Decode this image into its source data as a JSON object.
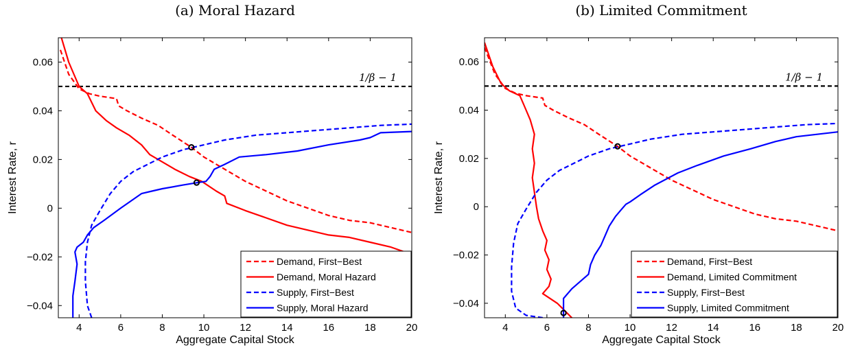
{
  "chart_data": [
    {
      "type": "line",
      "title": "(a) Moral Hazard",
      "xlabel": "Aggregate Capital Stock",
      "ylabel": "Interest Rate, r",
      "xlim": [
        3,
        20
      ],
      "ylim": [
        -0.045,
        0.07
      ],
      "xticks": [
        "4",
        "6",
        "8",
        "10",
        "12",
        "14",
        "16",
        "18",
        "20"
      ],
      "yticks": [
        "−0.04",
        "−0.02",
        "0",
        "0.02",
        "0.04",
        "0.06"
      ],
      "xtick_values": [
        4,
        6,
        8,
        10,
        12,
        14,
        16,
        18,
        20
      ],
      "ytick_values": [
        -0.04,
        -0.02,
        0,
        0.02,
        0.04,
        0.06
      ],
      "annotation": "1/β − 1",
      "hline": 0.05,
      "legend_position": "bottom-right",
      "series": [
        {
          "name": "Demand, First−Best",
          "color": "#ff0000",
          "style": "dashed",
          "x": [
            3.1,
            3.5,
            4.0,
            4.5,
            5.0,
            5.8,
            5.9,
            6.3,
            7.0,
            7.8,
            8.5,
            9.4,
            10.0,
            11.0,
            12.0,
            13.0,
            14.0,
            15.0,
            16.0,
            17.0,
            18.0,
            19.0,
            20.0
          ],
          "y": [
            0.065,
            0.055,
            0.049,
            0.047,
            0.046,
            0.045,
            0.042,
            0.04,
            0.037,
            0.034,
            0.03,
            0.025,
            0.021,
            0.016,
            0.011,
            0.007,
            0.003,
            0.0,
            -0.003,
            -0.005,
            -0.006,
            -0.008,
            -0.01
          ]
        },
        {
          "name": "Demand, Moral Hazard",
          "color": "#ff0000",
          "style": "solid",
          "x": [
            3.15,
            3.5,
            4.0,
            4.4,
            4.8,
            5.3,
            5.8,
            6.4,
            7.0,
            7.4,
            8.0,
            8.6,
            9.3,
            9.9,
            10.6,
            11.0,
            11.1,
            12.0,
            13.0,
            14.0,
            15.0,
            16.0,
            17.0,
            18.0,
            19.0,
            20.0
          ],
          "y": [
            0.07,
            0.06,
            0.05,
            0.047,
            0.04,
            0.036,
            0.033,
            0.03,
            0.026,
            0.022,
            0.019,
            0.016,
            0.013,
            0.011,
            0.007,
            0.005,
            0.002,
            -0.001,
            -0.004,
            -0.007,
            -0.009,
            -0.011,
            -0.012,
            -0.014,
            -0.016,
            -0.019
          ]
        },
        {
          "name": "Supply, First−Best",
          "color": "#0000ff",
          "style": "dashed",
          "x": [
            4.6,
            4.4,
            4.3,
            4.3,
            4.4,
            4.6,
            5.0,
            5.5,
            6.0,
            6.6,
            7.3,
            8.0,
            9.0,
            10.0,
            11.0,
            12.5,
            14.0,
            15.5,
            17.0,
            18.5,
            20.0
          ],
          "y": [
            -0.045,
            -0.04,
            -0.03,
            -0.022,
            -0.014,
            -0.007,
            -0.001,
            0.006,
            0.011,
            0.015,
            0.018,
            0.021,
            0.024,
            0.026,
            0.028,
            0.03,
            0.031,
            0.032,
            0.033,
            0.034,
            0.0345
          ]
        },
        {
          "name": "Supply, Moral Hazard",
          "color": "#0000ff",
          "style": "solid",
          "x": [
            3.7,
            3.7,
            3.8,
            3.9,
            3.8,
            3.9,
            4.2,
            4.4,
            4.7,
            5.2,
            6.0,
            7.0,
            7.5,
            8.0,
            9.0,
            9.7,
            10.1,
            10.3,
            10.5,
            11.0,
            11.7,
            13.0,
            14.5,
            16.0,
            17.5,
            18.0,
            18.5,
            20.0
          ],
          "y": [
            -0.045,
            -0.036,
            -0.03,
            -0.023,
            -0.018,
            -0.016,
            -0.014,
            -0.011,
            -0.008,
            -0.005,
            0.0,
            0.006,
            0.007,
            0.008,
            0.0095,
            0.0105,
            0.011,
            0.013,
            0.016,
            0.018,
            0.021,
            0.022,
            0.0235,
            0.026,
            0.028,
            0.029,
            0.031,
            0.0315
          ]
        }
      ],
      "markers": [
        {
          "x": 9.4,
          "y": 0.025
        },
        {
          "x": 9.65,
          "y": 0.0105
        }
      ]
    },
    {
      "type": "line",
      "title": "(b) Limited Commitment",
      "xlabel": "Aggregate Capital Stock",
      "ylabel": "Interest Rate, r",
      "xlim": [
        3,
        20
      ],
      "ylim": [
        -0.046,
        0.07
      ],
      "xticks": [
        "4",
        "6",
        "8",
        "10",
        "12",
        "14",
        "16",
        "18",
        "20"
      ],
      "yticks": [
        "−0.04",
        "−0.02",
        "0",
        "0.02",
        "0.04",
        "0.06"
      ],
      "xtick_values": [
        4,
        6,
        8,
        10,
        12,
        14,
        16,
        18,
        20
      ],
      "ytick_values": [
        -0.04,
        -0.02,
        0,
        0.02,
        0.04,
        0.06
      ],
      "annotation": "1/β − 1",
      "hline": 0.05,
      "legend_position": "bottom-right",
      "series": [
        {
          "name": "Demand, First−Best",
          "color": "#ff0000",
          "style": "dashed",
          "x": [
            3.0,
            3.5,
            4.0,
            4.5,
            5.0,
            5.8,
            5.9,
            6.3,
            7.0,
            7.8,
            8.5,
            9.4,
            10.0,
            11.0,
            12.0,
            13.0,
            14.0,
            15.0,
            16.0,
            17.0,
            18.0,
            19.0,
            20.0
          ],
          "y": [
            0.066,
            0.055,
            0.049,
            0.047,
            0.046,
            0.045,
            0.042,
            0.04,
            0.037,
            0.034,
            0.03,
            0.025,
            0.021,
            0.016,
            0.011,
            0.007,
            0.003,
            0.0,
            -0.003,
            -0.005,
            -0.006,
            -0.008,
            -0.01
          ]
        },
        {
          "name": "Demand, Limited Commitment",
          "color": "#ff0000",
          "style": "solid",
          "x": [
            3.0,
            3.4,
            3.8,
            4.2,
            4.7,
            4.9,
            5.2,
            5.4,
            5.3,
            5.4,
            5.3,
            5.4,
            5.5,
            5.6,
            5.8,
            6.0,
            5.9,
            6.1,
            6.0,
            6.2,
            6.1,
            5.8,
            6.5,
            7.2
          ],
          "y": [
            0.068,
            0.058,
            0.051,
            0.048,
            0.046,
            0.042,
            0.036,
            0.03,
            0.024,
            0.018,
            0.012,
            0.006,
            0.0,
            -0.005,
            -0.01,
            -0.014,
            -0.018,
            -0.022,
            -0.026,
            -0.03,
            -0.033,
            -0.036,
            -0.04,
            -0.046
          ]
        },
        {
          "name": "Supply, First−Best",
          "color": "#0000ff",
          "style": "dashed",
          "x": [
            5.8,
            5.0,
            4.5,
            4.3,
            4.3,
            4.4,
            4.6,
            5.0,
            5.5,
            6.0,
            6.6,
            7.3,
            8.0,
            9.0,
            10.0,
            11.0,
            12.5,
            14.0,
            15.5,
            17.0,
            18.5,
            20.0
          ],
          "y": [
            -0.046,
            -0.045,
            -0.042,
            -0.035,
            -0.025,
            -0.015,
            -0.007,
            -0.001,
            0.006,
            0.011,
            0.015,
            0.018,
            0.021,
            0.024,
            0.026,
            0.028,
            0.03,
            0.031,
            0.032,
            0.033,
            0.034,
            0.0345
          ]
        },
        {
          "name": "Supply, Limited Commitment",
          "color": "#0000ff",
          "style": "solid",
          "x": [
            6.8,
            6.8,
            7.2,
            7.6,
            8.0,
            8.1,
            8.3,
            8.6,
            8.8,
            9.0,
            9.3,
            9.6,
            9.8,
            10.0,
            10.5,
            11.2,
            12.3,
            13.2,
            14.5,
            15.8,
            17.0,
            18.0,
            20.0
          ],
          "y": [
            -0.046,
            -0.038,
            -0.034,
            -0.031,
            -0.028,
            -0.024,
            -0.02,
            -0.016,
            -0.012,
            -0.008,
            -0.004,
            -0.001,
            0.001,
            0.002,
            0.005,
            0.009,
            0.014,
            0.017,
            0.021,
            0.024,
            0.027,
            0.029,
            0.031
          ]
        }
      ],
      "markers": [
        {
          "x": 9.4,
          "y": 0.025
        },
        {
          "x": 6.8,
          "y": -0.044
        }
      ]
    }
  ]
}
